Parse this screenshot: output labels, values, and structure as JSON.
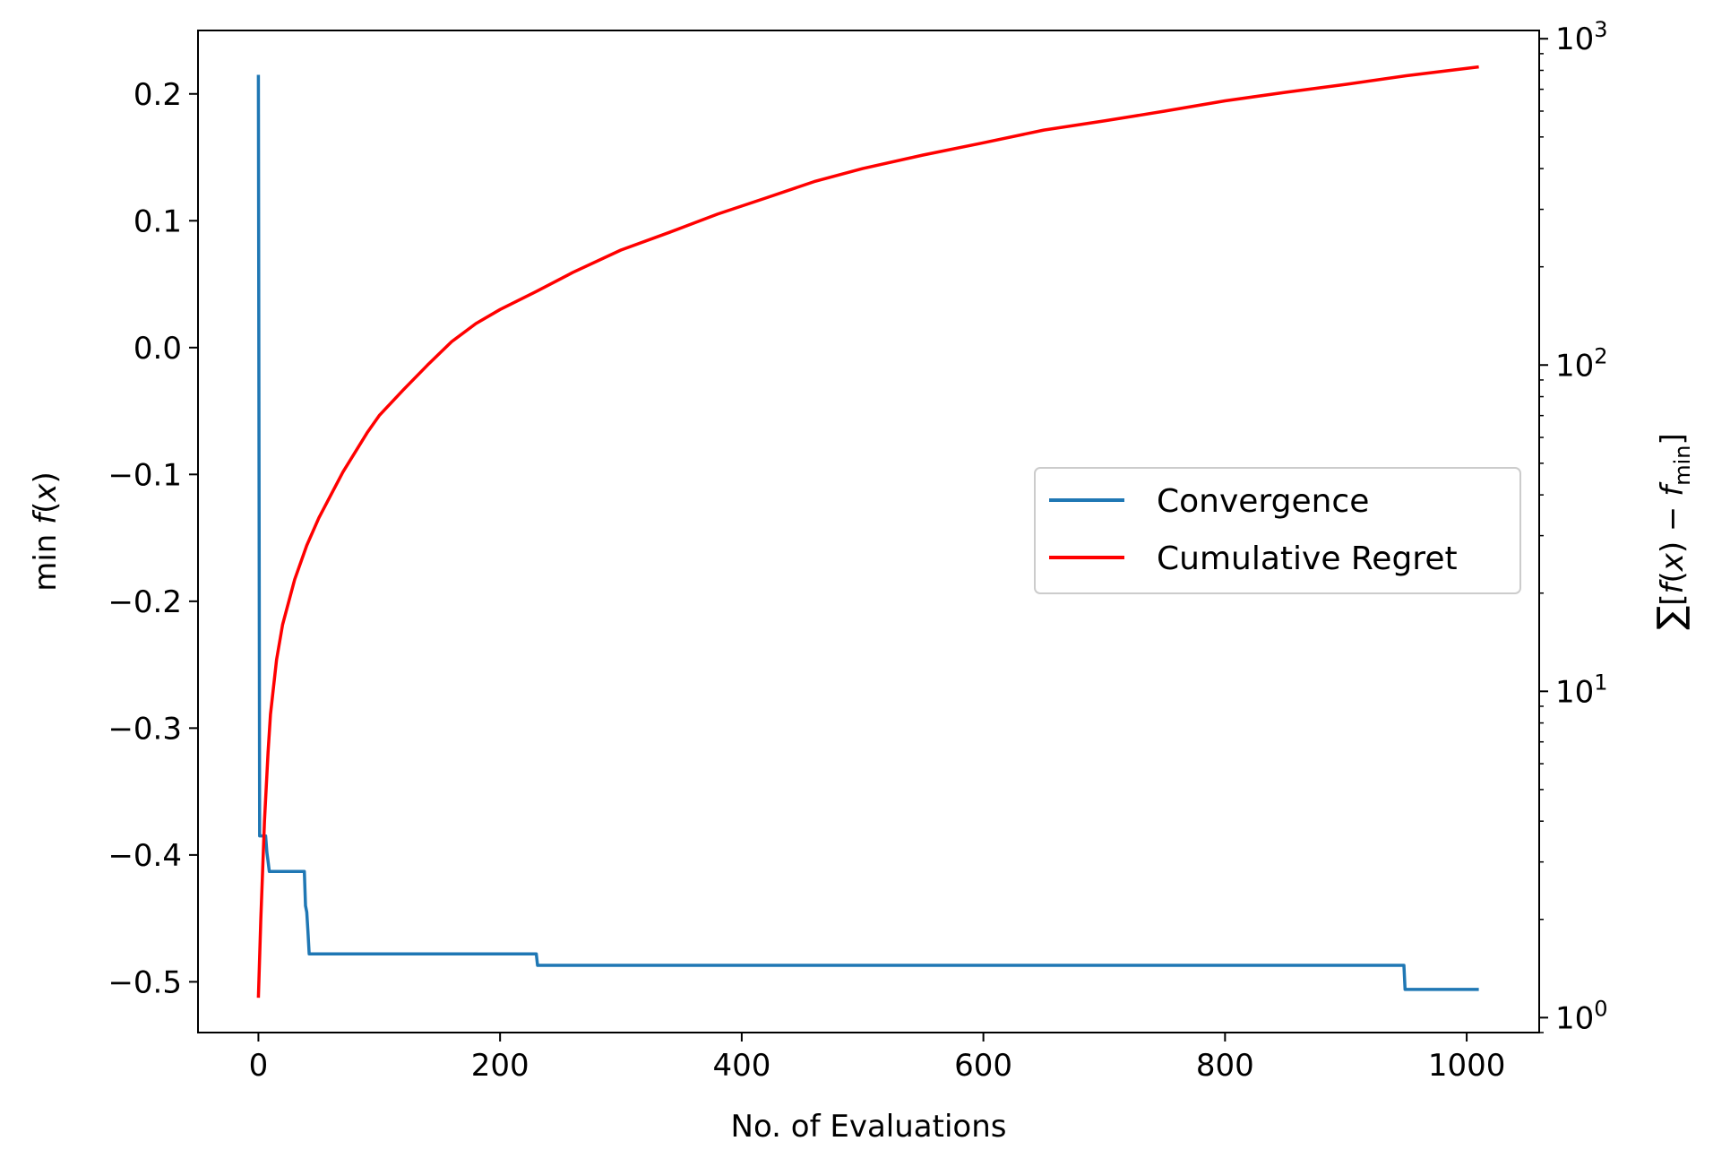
{
  "chart_data": {
    "type": "line",
    "xlabel": "No. of Evaluations",
    "ylabel_left": "min f(x)",
    "ylabel_right": "∑[f(x) − f_min]",
    "xlim": [
      -50,
      1060
    ],
    "ylim_left": [
      -0.54,
      0.25
    ],
    "ylim_right": [
      0.9,
      1060
    ],
    "yscale_right": "log",
    "grid": false,
    "legend_placement": "center-right",
    "x_ticks": [
      {
        "value": 0,
        "label": "0"
      },
      {
        "value": 200,
        "label": "200"
      },
      {
        "value": 400,
        "label": "400"
      },
      {
        "value": 600,
        "label": "600"
      },
      {
        "value": 800,
        "label": "800"
      },
      {
        "value": 1000,
        "label": "1000"
      }
    ],
    "y_left_ticks": [
      {
        "value": 0.2,
        "label": "0.2"
      },
      {
        "value": 0.1,
        "label": "0.1"
      },
      {
        "value": 0.0,
        "label": "0.0"
      },
      {
        "value": -0.1,
        "label": "−0.1"
      },
      {
        "value": -0.2,
        "label": "−0.2"
      },
      {
        "value": -0.3,
        "label": "−0.3"
      },
      {
        "value": -0.4,
        "label": "−0.4"
      },
      {
        "value": -0.5,
        "label": "−0.5"
      }
    ],
    "y_right_ticks": [
      {
        "value": 1,
        "base": "10",
        "exp": "0"
      },
      {
        "value": 10,
        "base": "10",
        "exp": "1"
      },
      {
        "value": 100,
        "base": "10",
        "exp": "2"
      },
      {
        "value": 1000,
        "base": "10",
        "exp": "3"
      }
    ],
    "series": [
      {
        "name": "Convergence",
        "axis": "left",
        "color": "#1f77b4",
        "step": true,
        "x": [
          0,
          1,
          2,
          6,
          7,
          8,
          9,
          38,
          39,
          40,
          41,
          42,
          230,
          231,
          948,
          949,
          1010
        ],
        "y": [
          0.215,
          -0.385,
          -0.385,
          -0.385,
          -0.398,
          -0.405,
          -0.413,
          -0.413,
          -0.44,
          -0.445,
          -0.46,
          -0.478,
          -0.478,
          -0.487,
          -0.487,
          -0.506,
          -0.506
        ]
      },
      {
        "name": "Cumulative Regret",
        "axis": "right",
        "color": "#ff0000",
        "step": false,
        "x": [
          0,
          2,
          5,
          8,
          10,
          15,
          20,
          30,
          40,
          50,
          60,
          70,
          80,
          90,
          100,
          120,
          140,
          160,
          180,
          200,
          230,
          260,
          300,
          340,
          380,
          420,
          460,
          500,
          550,
          600,
          650,
          700,
          750,
          800,
          850,
          900,
          950,
          1010
        ],
        "y": [
          1.15,
          2.0,
          4.0,
          6.5,
          8.5,
          12.5,
          16,
          22,
          28,
          34,
          40,
          47,
          54,
          62,
          70,
          84,
          100,
          118,
          134,
          148,
          168,
          192,
          225,
          255,
          290,
          325,
          365,
          400,
          440,
          480,
          525,
          560,
          600,
          645,
          685,
          725,
          770,
          820
        ]
      }
    ],
    "legend": [
      {
        "label": "Convergence",
        "color": "#1f77b4"
      },
      {
        "label": "Cumulative Regret",
        "color": "#ff0000"
      }
    ]
  }
}
